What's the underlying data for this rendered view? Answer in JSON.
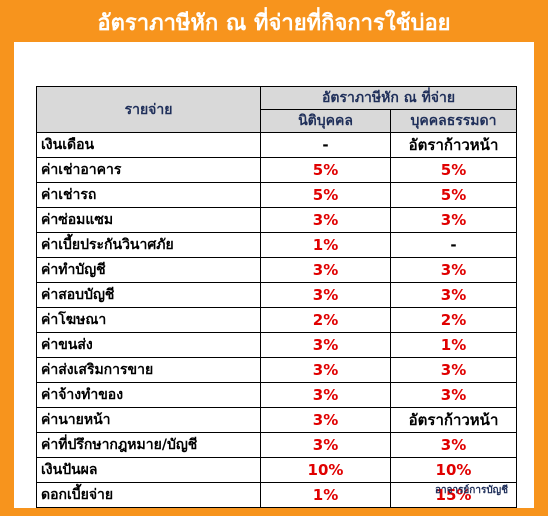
{
  "title": "อัตราภาษีหัก ณ ที่จ่ายที่กิจการใช้บ่อย",
  "table": {
    "header_item": "รายจ่าย",
    "header_group": "อัตราภาษีหัก ณ ที่จ่าย",
    "header_company": "นิติบุคคล",
    "header_person": "บุคคลธรรมดา",
    "rows": [
      {
        "item": "เงินเดือน",
        "company": "-",
        "person": "อัตราก้าวหน้า"
      },
      {
        "item": "ค่าเช่าอาคาร",
        "company": "5%",
        "person": "5%"
      },
      {
        "item": "ค่าเช่ารถ",
        "company": "5%",
        "person": "5%"
      },
      {
        "item": "ค่าซ่อมแซม",
        "company": "3%",
        "person": "3%"
      },
      {
        "item": "ค่าเบี้ยประกันวินาศภัย",
        "company": "1%",
        "person": "-"
      },
      {
        "item": "ค่าทำบัญชี",
        "company": "3%",
        "person": "3%"
      },
      {
        "item": "ค่าสอบบัญชี",
        "company": "3%",
        "person": "3%"
      },
      {
        "item": "ค่าโฆษณา",
        "company": "2%",
        "person": "2%"
      },
      {
        "item": "ค่าขนส่ง",
        "company": "3%",
        "person": "1%"
      },
      {
        "item": "ค่าส่งเสริมการขาย",
        "company": "3%",
        "person": "3%"
      },
      {
        "item": "ค่าจ้างทำของ",
        "company": "3%",
        "person": "3%"
      },
      {
        "item": "ค่านายหน้า",
        "company": "3%",
        "person": "อัตราก้าวหน้า"
      },
      {
        "item": "ค่าที่ปรึกษากฎหมาย/บัญชี",
        "company": "3%",
        "person": "3%"
      },
      {
        "item": "เงินปันผล",
        "company": "10%",
        "person": "10%"
      },
      {
        "item": "ดอกเบี้ยจ่าย",
        "company": "1%",
        "person": "15%"
      }
    ]
  },
  "source": "อาจารย์การบัญชี",
  "colors": {
    "background": "#f7941d",
    "value_red": "#e00000",
    "header_gray": "#d9d9d9"
  }
}
